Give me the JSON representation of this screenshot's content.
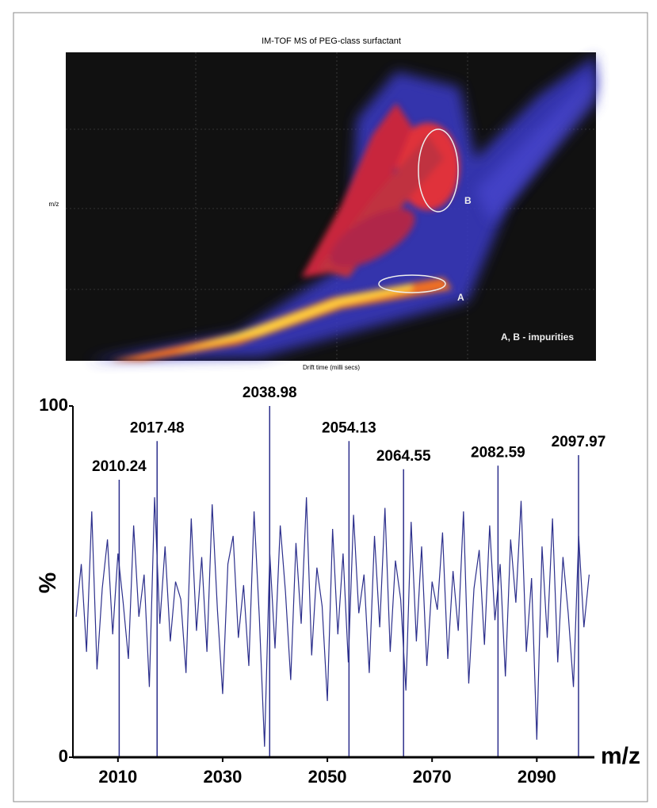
{
  "chart_data": [
    {
      "type": "heatmap",
      "title": "IM-TOF MS of PEG-class surfactant",
      "y_label": "m/z",
      "x_label": "Drift time (milli secs)",
      "annotations": [
        "A",
        "B",
        "A, B - impurities"
      ]
    },
    {
      "type": "line",
      "y_label": "%",
      "x_label": "m/z",
      "color": "#2c2f8c",
      "xlim": [
        2001.4,
        2101
      ],
      "xticks": [
        2010,
        2030,
        2050,
        2070,
        2090
      ],
      "ylim": [
        0,
        100
      ],
      "yticks": [
        0,
        100
      ],
      "x": [
        2002,
        2003,
        2004,
        2005,
        2006,
        2007,
        2008,
        2009,
        2010,
        2011,
        2012,
        2013,
        2014,
        2015,
        2016,
        2017,
        2018,
        2019,
        2020,
        2021,
        2022,
        2023,
        2024,
        2025,
        2026,
        2027,
        2028,
        2029,
        2030,
        2031,
        2032,
        2033,
        2034,
        2035,
        2036,
        2037,
        2038,
        2039,
        2040,
        2041,
        2042,
        2043,
        2044,
        2045,
        2046,
        2047,
        2048,
        2049,
        2050,
        2051,
        2052,
        2053,
        2054,
        2055,
        2056,
        2057,
        2058,
        2059,
        2060,
        2061,
        2062,
        2063,
        2064,
        2065,
        2066,
        2067,
        2068,
        2069,
        2070,
        2071,
        2072,
        2073,
        2074,
        2075,
        2076,
        2077,
        2078,
        2079,
        2080,
        2081,
        2082,
        2083,
        2084,
        2085,
        2086,
        2087,
        2088,
        2089,
        2090,
        2091,
        2092,
        2093,
        2094,
        2095,
        2096,
        2097,
        2098,
        2099,
        2100
      ],
      "values": [
        40,
        55,
        30,
        70,
        25,
        48,
        62,
        35,
        58,
        44,
        28,
        66,
        40,
        52,
        20,
        74,
        38,
        60,
        33,
        50,
        45,
        24,
        68,
        36,
        57,
        30,
        72,
        42,
        18,
        55,
        63,
        34,
        49,
        26,
        70,
        40,
        3,
        58,
        31,
        66,
        47,
        22,
        61,
        38,
        74,
        29,
        54,
        43,
        16,
        65,
        35,
        58,
        27,
        69,
        41,
        52,
        24,
        63,
        37,
        71,
        30,
        56,
        45,
        19,
        67,
        33,
        60,
        26,
        50,
        42,
        64,
        28,
        53,
        36,
        70,
        21,
        48,
        59,
        32,
        66,
        39,
        55,
        23,
        62,
        44,
        73,
        30,
        51,
        5,
        60,
        34,
        68,
        27,
        57,
        41,
        20,
        63,
        37,
        52
      ],
      "peaks": [
        {
          "x": 2010.24,
          "y": 79
        },
        {
          "x": 2017.48,
          "y": 90
        },
        {
          "x": 2038.98,
          "y": 100
        },
        {
          "x": 2054.13,
          "y": 90
        },
        {
          "x": 2064.55,
          "y": 82
        },
        {
          "x": 2082.59,
          "y": 83
        },
        {
          "x": 2097.97,
          "y": 86
        }
      ]
    }
  ]
}
